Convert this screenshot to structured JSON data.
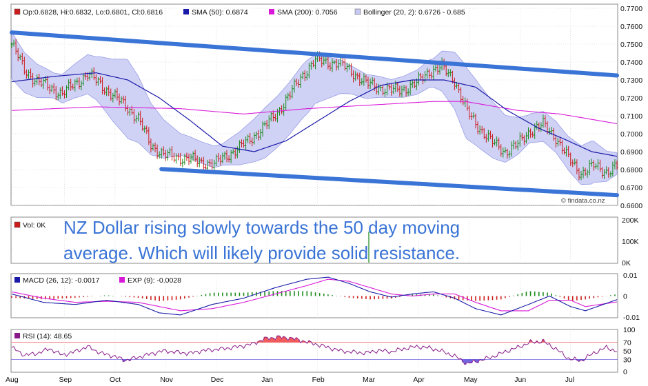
{
  "legend": {
    "ohlc": "Op:0.6828, Hi:0.6832, Lo:0.6801, Cl:0.6816",
    "sma50": "SMA (50): 0.6874",
    "sma200": "SMA (200): 0.7056",
    "bollinger": "Bollinger (20, 2): 0.6726 - 0.685",
    "watermark": "© findata.co.nz"
  },
  "volume": {
    "label": "Vol: 0K",
    "ticks": [
      "200K",
      "100K",
      "0K"
    ]
  },
  "macd": {
    "label": "MACD (26, 12): -0.0017",
    "exp_label": "EXP (9): -0.0028",
    "ticks": [
      "0.01",
      "0",
      "-0.01"
    ]
  },
  "rsi": {
    "label": "RSI (14): 48.65",
    "ticks": [
      "100",
      "70",
      "50",
      "30",
      "0"
    ]
  },
  "annotation": {
    "line1": "NZ Dollar rising slowly towards the 50 day moving",
    "line2": "average. Which will likely provide solid resistance."
  },
  "colors": {
    "up": "#1a8a1a",
    "down": "#cc1b1b",
    "sma50": "#1a1aa8",
    "sma200": "#d81ad8",
    "band_fill": "#c7c9f3",
    "band_edge": "#9a9ee6",
    "trend": "#3a74d6",
    "macd": "#1a1aa8",
    "exp": "#d81ad8",
    "rsi": "#8a1a8a",
    "rsi_over": "#f05a5a",
    "rsi_under": "#6e62e0",
    "grid": "#d0d0d0"
  },
  "chart_data": {
    "type": "line",
    "title": "",
    "x": [
      "Aug",
      "Sep",
      "Oct",
      "Nov",
      "Dec",
      "Jan",
      "Feb",
      "Mar",
      "Apr",
      "May",
      "Jun",
      "Jul"
    ],
    "price_ticks": [
      "0.7700",
      "0.7600",
      "0.7500",
      "0.7400",
      "0.7300",
      "0.7200",
      "0.7100",
      "0.7000",
      "0.6900",
      "0.6800",
      "0.6700",
      "0.6600"
    ],
    "ylim": [
      0.66,
      0.77
    ],
    "price_anchors": [
      [
        0,
        0.75
      ],
      [
        6,
        0.736
      ],
      [
        12,
        0.729
      ],
      [
        18,
        0.726
      ],
      [
        24,
        0.722
      ],
      [
        30,
        0.728
      ],
      [
        36,
        0.733
      ],
      [
        42,
        0.728
      ],
      [
        48,
        0.721
      ],
      [
        54,
        0.716
      ],
      [
        60,
        0.708
      ],
      [
        66,
        0.694
      ],
      [
        72,
        0.688
      ],
      [
        78,
        0.687
      ],
      [
        84,
        0.686
      ],
      [
        90,
        0.684
      ],
      [
        96,
        0.683
      ],
      [
        102,
        0.688
      ],
      [
        108,
        0.692
      ],
      [
        114,
        0.698
      ],
      [
        120,
        0.704
      ],
      [
        126,
        0.712
      ],
      [
        132,
        0.722
      ],
      [
        138,
        0.733
      ],
      [
        144,
        0.741
      ],
      [
        150,
        0.74
      ],
      [
        156,
        0.739
      ],
      [
        162,
        0.734
      ],
      [
        168,
        0.728
      ],
      [
        174,
        0.726
      ],
      [
        180,
        0.724
      ],
      [
        186,
        0.725
      ],
      [
        192,
        0.728
      ],
      [
        198,
        0.735
      ],
      [
        204,
        0.737
      ],
      [
        210,
        0.73
      ],
      [
        216,
        0.712
      ],
      [
        222,
        0.703
      ],
      [
        228,
        0.695
      ],
      [
        234,
        0.69
      ],
      [
        240,
        0.694
      ],
      [
        246,
        0.702
      ],
      [
        252,
        0.705
      ],
      [
        258,
        0.698
      ],
      [
        264,
        0.686
      ],
      [
        270,
        0.678
      ],
      [
        276,
        0.682
      ],
      [
        282,
        0.679
      ],
      [
        287,
        0.6816
      ]
    ],
    "sma50_anchors": [
      [
        0,
        0.729
      ],
      [
        20,
        0.732
      ],
      [
        40,
        0.734
      ],
      [
        55,
        0.73
      ],
      [
        70,
        0.72
      ],
      [
        85,
        0.707
      ],
      [
        100,
        0.693
      ],
      [
        115,
        0.69
      ],
      [
        130,
        0.696
      ],
      [
        145,
        0.707
      ],
      [
        160,
        0.718
      ],
      [
        175,
        0.727
      ],
      [
        190,
        0.73
      ],
      [
        205,
        0.73
      ],
      [
        220,
        0.726
      ],
      [
        235,
        0.713
      ],
      [
        250,
        0.703
      ],
      [
        262,
        0.697
      ],
      [
        275,
        0.69
      ],
      [
        287,
        0.6874
      ]
    ],
    "sma200_anchors": [
      [
        0,
        0.713
      ],
      [
        40,
        0.715
      ],
      [
        80,
        0.714
      ],
      [
        110,
        0.711
      ],
      [
        140,
        0.714
      ],
      [
        170,
        0.716
      ],
      [
        200,
        0.718
      ],
      [
        215,
        0.718
      ],
      [
        240,
        0.713
      ],
      [
        260,
        0.711
      ],
      [
        287,
        0.7056
      ]
    ],
    "bollinger_width_anchors": [
      [
        0,
        0.013
      ],
      [
        20,
        0.007
      ],
      [
        40,
        0.012
      ],
      [
        55,
        0.022
      ],
      [
        65,
        0.015
      ],
      [
        80,
        0.006
      ],
      [
        100,
        0.006
      ],
      [
        120,
        0.014
      ],
      [
        140,
        0.015
      ],
      [
        160,
        0.008
      ],
      [
        180,
        0.005
      ],
      [
        200,
        0.008
      ],
      [
        215,
        0.02
      ],
      [
        230,
        0.015
      ],
      [
        245,
        0.008
      ],
      [
        262,
        0.009
      ],
      [
        275,
        0.012
      ],
      [
        287,
        0.006
      ]
    ],
    "trendlines": [
      {
        "from": [
          0,
          0.7565
        ],
        "to": [
          287,
          0.7325
        ]
      },
      {
        "from": [
          71,
          0.6803
        ],
        "to": [
          287,
          0.6657
        ]
      }
    ],
    "macd_ylim": [
      -0.01,
      0.01
    ],
    "macd_anchors": [
      [
        0,
        0.001
      ],
      [
        15,
        -0.003
      ],
      [
        30,
        -0.004
      ],
      [
        45,
        -0.002
      ],
      [
        60,
        -0.004
      ],
      [
        70,
        -0.008
      ],
      [
        80,
        -0.009
      ],
      [
        95,
        -0.004
      ],
      [
        110,
        -0.001
      ],
      [
        125,
        0.004
      ],
      [
        140,
        0.008
      ],
      [
        150,
        0.009
      ],
      [
        160,
        0.006
      ],
      [
        170,
        0.002
      ],
      [
        180,
        -0.0005
      ],
      [
        190,
        0.001
      ],
      [
        200,
        0.002
      ],
      [
        210,
        -0.001
      ],
      [
        220,
        -0.006
      ],
      [
        232,
        -0.009
      ],
      [
        245,
        -0.004
      ],
      [
        255,
        0.0
      ],
      [
        265,
        -0.005
      ],
      [
        272,
        -0.007
      ],
      [
        287,
        -0.0017
      ]
    ],
    "exp_anchors": [
      [
        0,
        0.002
      ],
      [
        15,
        -0.001
      ],
      [
        30,
        -0.003
      ],
      [
        45,
        -0.0025
      ],
      [
        60,
        -0.003
      ],
      [
        70,
        -0.005
      ],
      [
        80,
        -0.007
      ],
      [
        95,
        -0.006
      ],
      [
        110,
        -0.003
      ],
      [
        125,
        0.001
      ],
      [
        140,
        0.005
      ],
      [
        150,
        0.008
      ],
      [
        160,
        0.007
      ],
      [
        170,
        0.004
      ],
      [
        180,
        0.001
      ],
      [
        190,
        0.0
      ],
      [
        200,
        0.001
      ],
      [
        210,
        0.001
      ],
      [
        220,
        -0.003
      ],
      [
        232,
        -0.007
      ],
      [
        245,
        -0.007
      ],
      [
        255,
        -0.002
      ],
      [
        265,
        -0.002
      ],
      [
        272,
        -0.005
      ],
      [
        287,
        -0.0028
      ]
    ],
    "rsi_ylim": [
      0,
      100
    ],
    "rsi_anchors": [
      [
        0,
        58
      ],
      [
        6,
        40
      ],
      [
        12,
        44
      ],
      [
        18,
        55
      ],
      [
        24,
        40
      ],
      [
        30,
        48
      ],
      [
        36,
        60
      ],
      [
        42,
        45
      ],
      [
        48,
        38
      ],
      [
        54,
        28
      ],
      [
        60,
        35
      ],
      [
        66,
        43
      ],
      [
        72,
        50
      ],
      [
        78,
        47
      ],
      [
        84,
        44
      ],
      [
        90,
        50
      ],
      [
        96,
        53
      ],
      [
        102,
        56
      ],
      [
        108,
        60
      ],
      [
        114,
        66
      ],
      [
        120,
        78
      ],
      [
        126,
        82
      ],
      [
        132,
        80
      ],
      [
        138,
        73
      ],
      [
        144,
        66
      ],
      [
        150,
        58
      ],
      [
        156,
        50
      ],
      [
        162,
        47
      ],
      [
        168,
        45
      ],
      [
        174,
        51
      ],
      [
        180,
        48
      ],
      [
        186,
        55
      ],
      [
        192,
        60
      ],
      [
        198,
        57
      ],
      [
        204,
        49
      ],
      [
        210,
        38
      ],
      [
        216,
        20
      ],
      [
        222,
        28
      ],
      [
        228,
        36
      ],
      [
        234,
        48
      ],
      [
        240,
        58
      ],
      [
        246,
        70
      ],
      [
        252,
        72
      ],
      [
        258,
        55
      ],
      [
        264,
        32
      ],
      [
        270,
        27
      ],
      [
        276,
        45
      ],
      [
        282,
        58
      ],
      [
        287,
        48.65
      ]
    ]
  }
}
